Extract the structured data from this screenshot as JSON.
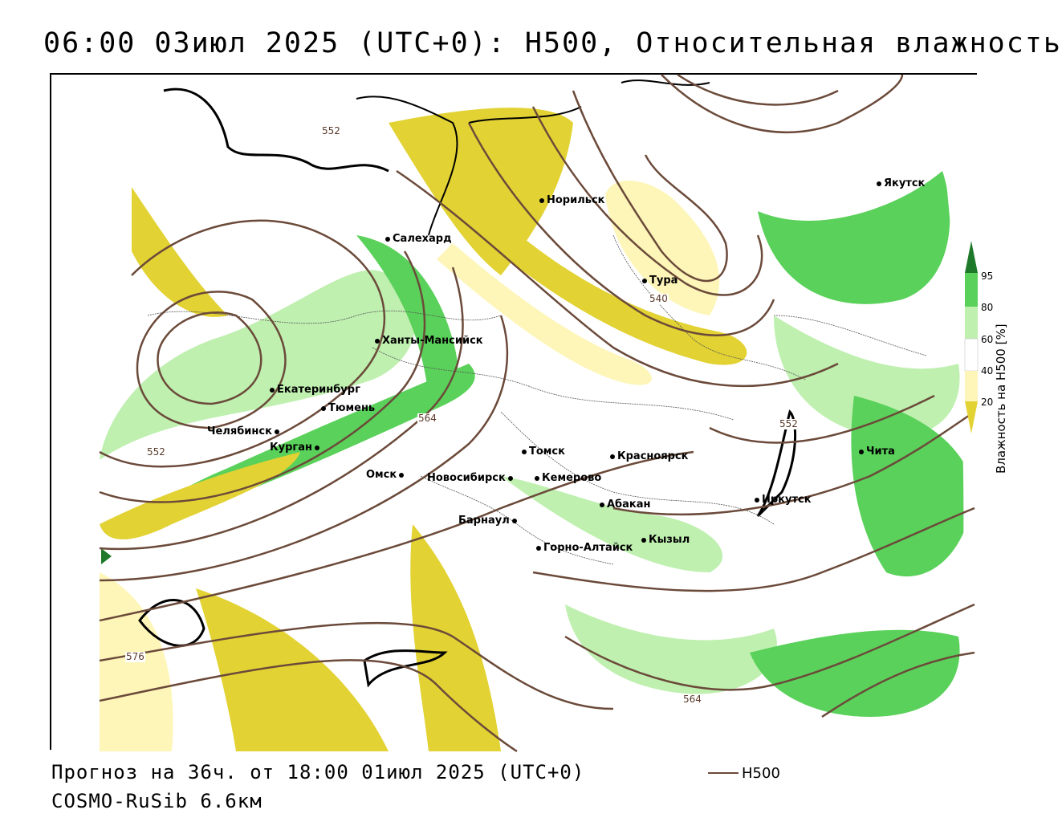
{
  "title": "06:00 03июл 2025 (UTC+0): H500, Относительная влажность",
  "forecast_line": "Прогноз на 36ч. от 18:00 01июл 2025 (UTC+0)",
  "model_line": "COSMO-RuSib 6.6км",
  "legend": {
    "contour_label": "H500",
    "contour_color": "#6b4a3a"
  },
  "colorbar": {
    "title": "Влажность на H500 [%]",
    "ticks": [
      "95",
      "80",
      "60",
      "40",
      "20"
    ],
    "colors": {
      "dark_green": "#1e7a2a",
      "green": "#5ad15a",
      "light_green": "#bff0b0",
      "white": "#ffffff",
      "light_yellow": "#fdf6b8",
      "yellow": "#e2d233"
    }
  },
  "contour_labels": [
    "552",
    "540",
    "564",
    "552",
    "552",
    "576",
    "564"
  ],
  "cities": [
    {
      "name": "Якутск"
    },
    {
      "name": "Норильск"
    },
    {
      "name": "Салехард"
    },
    {
      "name": "Тура"
    },
    {
      "name": "Ханты-Мансийск"
    },
    {
      "name": "Екатеринбург"
    },
    {
      "name": "Тюмень"
    },
    {
      "name": "Челябинск"
    },
    {
      "name": "Курган"
    },
    {
      "name": "Омск"
    },
    {
      "name": "Новосибирск"
    },
    {
      "name": "Томск"
    },
    {
      "name": "Кемерово"
    },
    {
      "name": "Красноярск"
    },
    {
      "name": "Абакан"
    },
    {
      "name": "Барнаул"
    },
    {
      "name": "Горно-Алтайск"
    },
    {
      "name": "Кызыл"
    },
    {
      "name": "Иркутск"
    },
    {
      "name": "Чита"
    }
  ]
}
